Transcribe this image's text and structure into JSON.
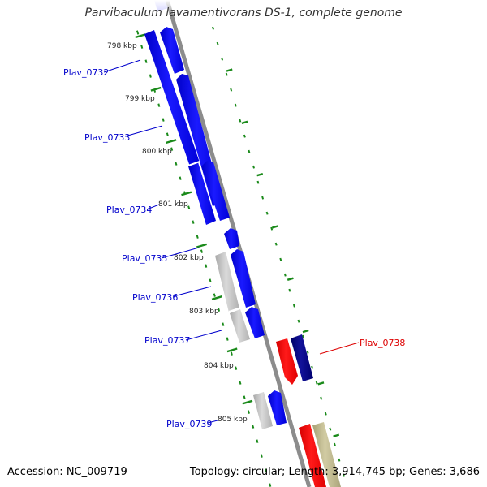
{
  "title": "Parvibaculum lavamentivorans DS-1, complete genome",
  "footer": {
    "accession": "Accession: NC_009719",
    "summary": "Topology: circular; Length: 3,914,745 bp; Genes: 3,686"
  },
  "colors": {
    "backbone": "#8c8c8c",
    "tick": "#1a8a1a",
    "blue_gene": "#0000ee",
    "navy_gene": "#00007a",
    "red_gene": "#ee0000",
    "gray_gene": "#b4b4b4",
    "khaki_gene": "#b9b48a",
    "blue_label": "#0000cc",
    "red_label": "#dd0000"
  },
  "position_labels": [
    "798 kbp",
    "799 kbp",
    "800 kbp",
    "801 kbp",
    "802 kbp",
    "803 kbp",
    "804 kbp",
    "805 kbp"
  ],
  "gene_labels": [
    {
      "text": "Plav_0732",
      "color": "blue"
    },
    {
      "text": "Plav_0733",
      "color": "blue"
    },
    {
      "text": "Plav_0734",
      "color": "blue"
    },
    {
      "text": "Plav_0735",
      "color": "blue"
    },
    {
      "text": "Plav_0736",
      "color": "blue"
    },
    {
      "text": "Plav_0737",
      "color": "blue"
    },
    {
      "text": "Plav_0738",
      "color": "red"
    },
    {
      "text": "Plav_0739",
      "color": "blue"
    }
  ]
}
